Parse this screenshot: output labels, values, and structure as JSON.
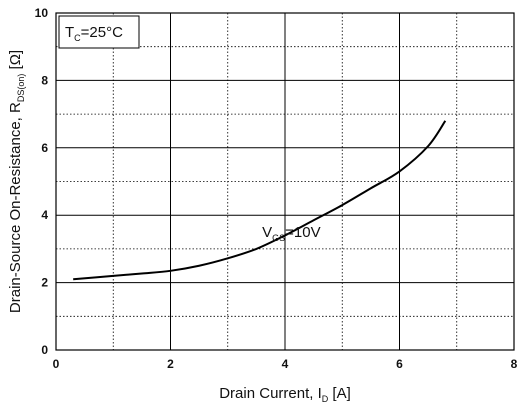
{
  "chart_data": {
    "type": "line",
    "xlabel": {
      "main": "Drain Current, I",
      "sub": "D",
      "unit": " [A]"
    },
    "ylabel": {
      "main": "Drain-Source On-Resistance, R",
      "sub": "DS(on)",
      "unit": " [Ω]"
    },
    "xlim": [
      0,
      8
    ],
    "ylim": [
      0,
      10
    ],
    "xticks": [
      "0",
      "2",
      "4",
      "6",
      "8"
    ],
    "yticks": [
      "0",
      "2",
      "4",
      "6",
      "8",
      "10"
    ],
    "grid": {
      "major": true,
      "minor_dotted": true
    },
    "legend_box": {
      "main": "T",
      "sub": "C",
      "rest": "=25°C"
    },
    "annotation": {
      "main": "V",
      "sub": "GS",
      "rest": "=10V",
      "at": [
        3.6,
        3.5
      ]
    },
    "series": [
      {
        "x": [
          0.3,
          1.0,
          1.5,
          2.0,
          2.5,
          3.0,
          3.5,
          4.0,
          4.5,
          5.0,
          5.5,
          6.0,
          6.5,
          6.8
        ],
        "y": [
          2.1,
          2.2,
          2.27,
          2.35,
          2.5,
          2.72,
          3.0,
          3.4,
          3.85,
          4.3,
          4.8,
          5.3,
          6.05,
          6.8
        ]
      }
    ]
  }
}
